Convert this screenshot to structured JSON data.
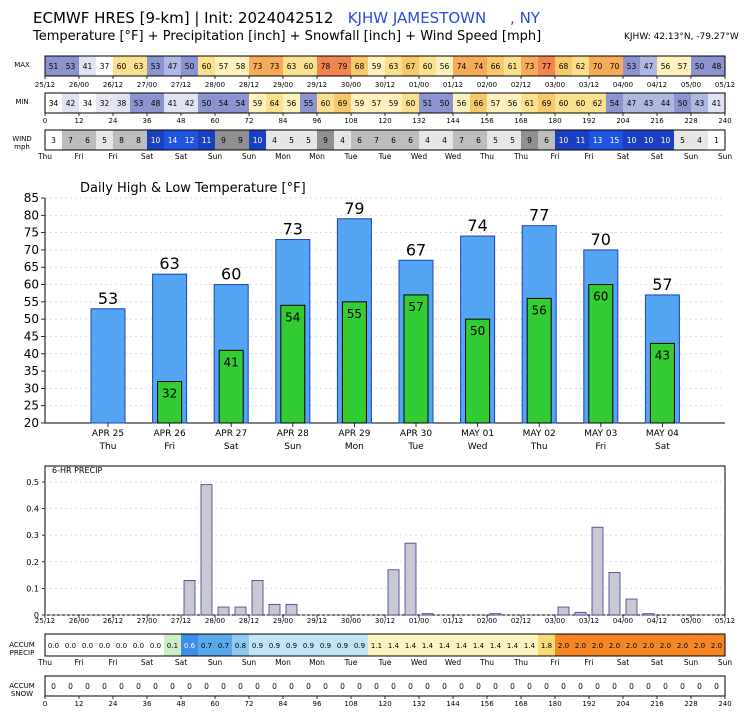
{
  "header": {
    "title_prefix": "ECMWF HRES [9-km] | Init: 2024042512",
    "site_text": "KJHW JAMESTOWN     , NY",
    "subtitle": "Temperature [°F] + Precipitation [inch] + Snowfall [inch] + Wind Speed [mph]",
    "coords": "KJHW: 42.13°N, -79.27°W"
  },
  "strip_labels": {
    "max": "MAX",
    "min": "MIN",
    "wind": "WIND",
    "wind_unit": "mph",
    "accum_precip": "ACCUM",
    "accum_precip2": "PRECIP",
    "accum_snow": "ACCUM",
    "accum_snow2": "SNOW"
  },
  "time_axis": {
    "date_labels": [
      "25/12",
      "26/00",
      "26/12",
      "27/00",
      "27/12",
      "28/00",
      "28/12",
      "29/00",
      "29/12",
      "30/00",
      "30/12",
      "01/00",
      "01/12",
      "02/00",
      "02/12",
      "03/00",
      "03/12",
      "04/00",
      "04/12",
      "05/00",
      "05/12"
    ],
    "hour_labels": [
      "0",
      "12",
      "24",
      "36",
      "48",
      "60",
      "72",
      "84",
      "96",
      "108",
      "120",
      "132",
      "144",
      "156",
      "168",
      "180",
      "192",
      "204",
      "216",
      "228",
      "240"
    ],
    "day_labels": [
      "Thu",
      "Fri",
      "Fri",
      "Sat",
      "Sat",
      "Sun",
      "Sun",
      "Mon",
      "Mon",
      "Tue",
      "Tue",
      "Wed",
      "Wed",
      "Thu",
      "Thu",
      "Fri",
      "Fri",
      "Sat",
      "Sat",
      "Sun",
      "Sun"
    ]
  },
  "strips": {
    "max_values": [
      51,
      53,
      41,
      37,
      60,
      63,
      53,
      47,
      50,
      60,
      57,
      58,
      73,
      73,
      63,
      60,
      78,
      79,
      68,
      59,
      63,
      67,
      60,
      56,
      74,
      74,
      66,
      61,
      73,
      77,
      68,
      62,
      70,
      70,
      53,
      47,
      56,
      57,
      50,
      48
    ],
    "min_values": [
      34,
      42,
      34,
      32,
      38,
      53,
      48,
      41,
      42,
      50,
      54,
      54,
      59,
      64,
      56,
      55,
      60,
      69,
      59,
      57,
      59,
      60,
      51,
      50,
      56,
      66,
      57,
      56,
      61,
      69,
      60,
      60,
      62,
      54,
      47,
      43,
      44,
      50,
      43,
      41
    ],
    "wind_values": [
      3,
      7,
      6,
      5,
      8,
      8,
      10,
      14,
      12,
      11,
      9,
      9,
      10,
      4,
      5,
      5,
      9,
      4,
      6,
      7,
      6,
      6,
      4,
      4,
      7,
      6,
      5,
      5,
      9,
      6,
      10,
      11,
      13,
      15,
      10,
      10,
      10,
      5,
      4,
      1
    ],
    "accum_precip_values": [
      "0.0",
      "0.0",
      "0.0",
      "0.0",
      "0.0",
      "0.0",
      "0.0",
      "0.1",
      "0.6",
      "0.7",
      "0.7",
      "0.8",
      "0.9",
      "0.9",
      "0.9",
      "0.9",
      "0.9",
      "0.9",
      "0.9",
      "1.1",
      "1.4",
      "1.4",
      "1.4",
      "1.4",
      "1.4",
      "1.4",
      "1.4",
      "1.4",
      "1.4",
      "1.8",
      "2.0",
      "2.0",
      "2.0",
      "2.0",
      "2.0",
      "2.0",
      "2.0",
      "2.0",
      "2.0",
      "2.0"
    ],
    "accum_snow_values": [
      "0",
      "0",
      "0",
      "0",
      "0",
      "0",
      "0",
      "0",
      "0",
      "0",
      "0",
      "0",
      "0",
      "0",
      "0",
      "0",
      "0",
      "0",
      "0",
      "0",
      "0",
      "0",
      "0",
      "0",
      "0",
      "0",
      "0",
      "0",
      "0",
      "0",
      "0",
      "0",
      "0",
      "0",
      "0",
      "0",
      "0",
      "0",
      "0",
      "0"
    ]
  },
  "chart_data": [
    {
      "type": "bar",
      "title": "Daily High & Low Temperature [°F]",
      "categories": [
        "APR 25",
        "APR 26",
        "APR 27",
        "APR 28",
        "APR 29",
        "APR 30",
        "MAY 01",
        "MAY 02",
        "MAY 03",
        "MAY 04"
      ],
      "day_names": [
        "Thu",
        "Fri",
        "Sat",
        "Sun",
        "Mon",
        "Tue",
        "Wed",
        "Thu",
        "Fri",
        "Sat"
      ],
      "series": [
        {
          "name": "High",
          "values": [
            53,
            63,
            60,
            73,
            79,
            67,
            74,
            77,
            70,
            57
          ],
          "color": "#55a5f5"
        },
        {
          "name": "Low",
          "values": [
            null,
            32,
            41,
            54,
            55,
            57,
            50,
            56,
            60,
            43
          ],
          "color": "#33cc33"
        }
      ],
      "ylim": [
        20,
        85
      ],
      "yticks": [
        20,
        25,
        30,
        35,
        40,
        45,
        50,
        55,
        60,
        65,
        70,
        75,
        80,
        85
      ],
      "grid": true
    },
    {
      "type": "bar",
      "title": "6-HR PRECIP",
      "x_hours": [
        0,
        6,
        12,
        18,
        24,
        30,
        36,
        42,
        48,
        54,
        60,
        66,
        72,
        78,
        84,
        90,
        96,
        102,
        108,
        114,
        120,
        126,
        132,
        138,
        144,
        150,
        156,
        162,
        168,
        174,
        180,
        186,
        192,
        198,
        204,
        210,
        216,
        222,
        228,
        234
      ],
      "values": [
        0,
        0,
        0,
        0,
        0,
        0,
        0,
        0,
        0.13,
        0.49,
        0.03,
        0.03,
        0.13,
        0.04,
        0.04,
        0,
        0,
        0,
        0,
        0,
        0.17,
        0.27,
        0.005,
        0,
        0,
        0,
        0.005,
        0,
        0,
        0,
        0.03,
        0.01,
        0.33,
        0.16,
        0.06,
        0.005,
        0,
        0,
        0,
        0
      ],
      "yticks": [
        0,
        0.1,
        0.2,
        0.3,
        0.4,
        0.5
      ],
      "ylim": [
        0,
        0.56
      ],
      "grid": true
    }
  ],
  "colors": {
    "temp_scale": [
      {
        "max": 32,
        "color": "#e8e8f2"
      },
      {
        "max": 37,
        "color": "#ffffff"
      },
      {
        "max": 42,
        "color": "#dfe3f3"
      },
      {
        "max": 47,
        "color": "#aeb8e0"
      },
      {
        "max": 55,
        "color": "#8b94cf"
      },
      {
        "max": 59,
        "color": "#fdf1bd"
      },
      {
        "max": 64,
        "color": "#fbe08e"
      },
      {
        "max": 69,
        "color": "#f8c96b"
      },
      {
        "max": 74,
        "color": "#f7ab58"
      },
      {
        "max": 200,
        "color": "#f2844e"
      }
    ],
    "wind_scale": [
      {
        "max": 3,
        "color": "#ffffff"
      },
      {
        "max": 5,
        "color": "#e6e6e6"
      },
      {
        "max": 8,
        "color": "#bdbdbd"
      },
      {
        "max": 9,
        "color": "#909090"
      },
      {
        "max": 11,
        "color": "#1a3fbf"
      },
      {
        "max": 100,
        "color": "#1f54e0"
      }
    ],
    "precip_scale": [
      {
        "max": 0.05,
        "color": "#ffffff"
      },
      {
        "max": 0.15,
        "color": "#cdeec7"
      },
      {
        "max": 0.65,
        "color": "#3d8ee6"
      },
      {
        "max": 0.75,
        "color": "#5aa9ec"
      },
      {
        "max": 0.85,
        "color": "#8fc9f2"
      },
      {
        "max": 1.05,
        "color": "#bfe5f7"
      },
      {
        "max": 1.5,
        "color": "#fbf6c0"
      },
      {
        "max": 1.85,
        "color": "#f8d978"
      },
      {
        "max": 9,
        "color": "#f58623"
      }
    ]
  }
}
